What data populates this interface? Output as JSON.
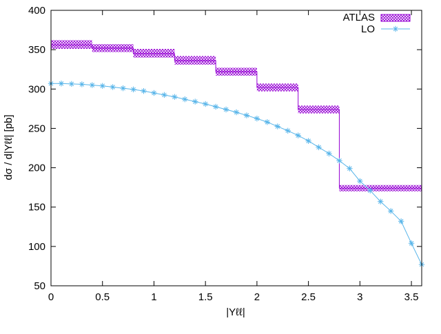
{
  "chart_data": {
    "type": "line",
    "title": "",
    "xlabel": "|Yℓℓ|",
    "ylabel": "dσ / d|Yℓℓ| [pb]",
    "xlim": [
      0,
      3.6
    ],
    "ylim": [
      50,
      400
    ],
    "xticks": [
      0,
      0.5,
      1,
      1.5,
      2,
      2.5,
      3,
      3.5
    ],
    "xtick_labels": [
      "0",
      "0.5",
      "1",
      "1.5",
      "2",
      "2.5",
      "3",
      "3.5"
    ],
    "yticks": [
      50,
      100,
      150,
      200,
      250,
      300,
      350,
      400
    ],
    "ytick_labels": [
      "50",
      "100",
      "150",
      "200",
      "250",
      "300",
      "350",
      "400"
    ],
    "grid": false,
    "legend_position": "top-right",
    "series": [
      {
        "name": "ATLAS",
        "style": "step-band",
        "color": "#9400d3",
        "bins": [
          {
            "x_low": 0.0,
            "x_high": 0.4,
            "y": 356,
            "y_low": 351,
            "y_high": 362
          },
          {
            "x_low": 0.4,
            "x_high": 0.8,
            "y": 352,
            "y_low": 347,
            "y_high": 357
          },
          {
            "x_low": 0.8,
            "x_high": 1.2,
            "y": 345,
            "y_low": 340,
            "y_high": 351
          },
          {
            "x_low": 1.2,
            "x_high": 1.6,
            "y": 336,
            "y_low": 331,
            "y_high": 342
          },
          {
            "x_low": 1.6,
            "x_high": 2.0,
            "y": 322,
            "y_low": 317,
            "y_high": 327
          },
          {
            "x_low": 2.0,
            "x_high": 2.4,
            "y": 302,
            "y_low": 297,
            "y_high": 307
          },
          {
            "x_low": 2.4,
            "x_high": 2.8,
            "y": 274,
            "y_low": 269,
            "y_high": 279
          },
          {
            "x_low": 2.8,
            "x_high": 3.6,
            "y": 174,
            "y_low": 170,
            "y_high": 178
          }
        ]
      },
      {
        "name": "LO",
        "style": "line-points",
        "marker": "asterisk",
        "color": "#56b4e9",
        "x": [
          0.0,
          0.1,
          0.2,
          0.3,
          0.4,
          0.5,
          0.6,
          0.7,
          0.8,
          0.9,
          1.0,
          1.1,
          1.2,
          1.3,
          1.4,
          1.5,
          1.6,
          1.7,
          1.8,
          1.9,
          2.0,
          2.1,
          2.2,
          2.3,
          2.4,
          2.5,
          2.6,
          2.7,
          2.8,
          2.9,
          3.0,
          3.1,
          3.2,
          3.3,
          3.4,
          3.5,
          3.6
        ],
        "y": [
          307,
          307,
          306.5,
          306,
          305,
          304,
          302.5,
          301,
          299.5,
          297.5,
          295,
          292.5,
          290,
          287,
          284,
          281,
          277.5,
          274,
          270.5,
          266.5,
          262.5,
          258,
          252.5,
          247,
          241,
          234,
          226,
          218,
          209,
          199,
          183,
          171,
          157,
          145,
          132,
          104,
          77
        ]
      }
    ]
  }
}
